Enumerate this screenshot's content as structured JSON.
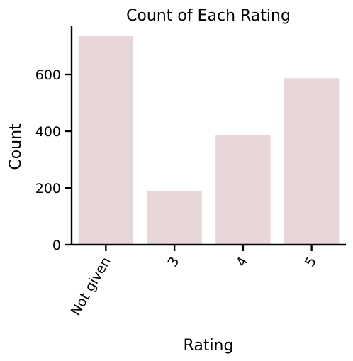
{
  "chart_data": {
    "type": "bar",
    "title": "Count of Each Rating",
    "xlabel": "Rating",
    "ylabel": "Count",
    "categories": [
      "Not given",
      "3",
      "4",
      "5"
    ],
    "values": [
      735,
      188,
      386,
      587
    ],
    "ylim": [
      0,
      770
    ],
    "yticks": [
      0,
      200,
      400,
      600
    ],
    "bar_color": "#e8d7d8",
    "grid": false,
    "legend": "none"
  }
}
